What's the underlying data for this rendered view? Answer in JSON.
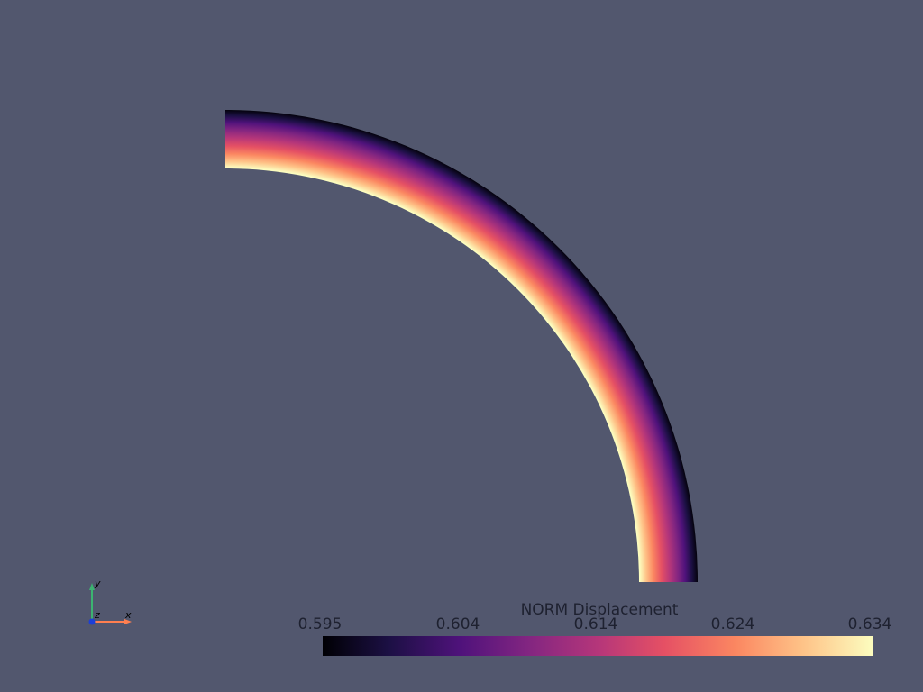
{
  "scene": {
    "background": "#52576e",
    "colormap": "magma",
    "colormap_stops": [
      "#000004",
      "#1c1044",
      "#4f127b",
      "#812581",
      "#b5367a",
      "#e55064",
      "#fb8761",
      "#fec287",
      "#fcfdbf"
    ]
  },
  "colorbar": {
    "title": "NORM Displacement",
    "ticks": [
      "0.595",
      "0.604",
      "0.614",
      "0.624",
      "0.634"
    ]
  },
  "axes_triad": {
    "x_label": "x",
    "y_label": "y",
    "z_label": "z",
    "x_color": "#ff7f50",
    "y_color": "#3cb371",
    "z_color": "#1c3fd6"
  }
}
